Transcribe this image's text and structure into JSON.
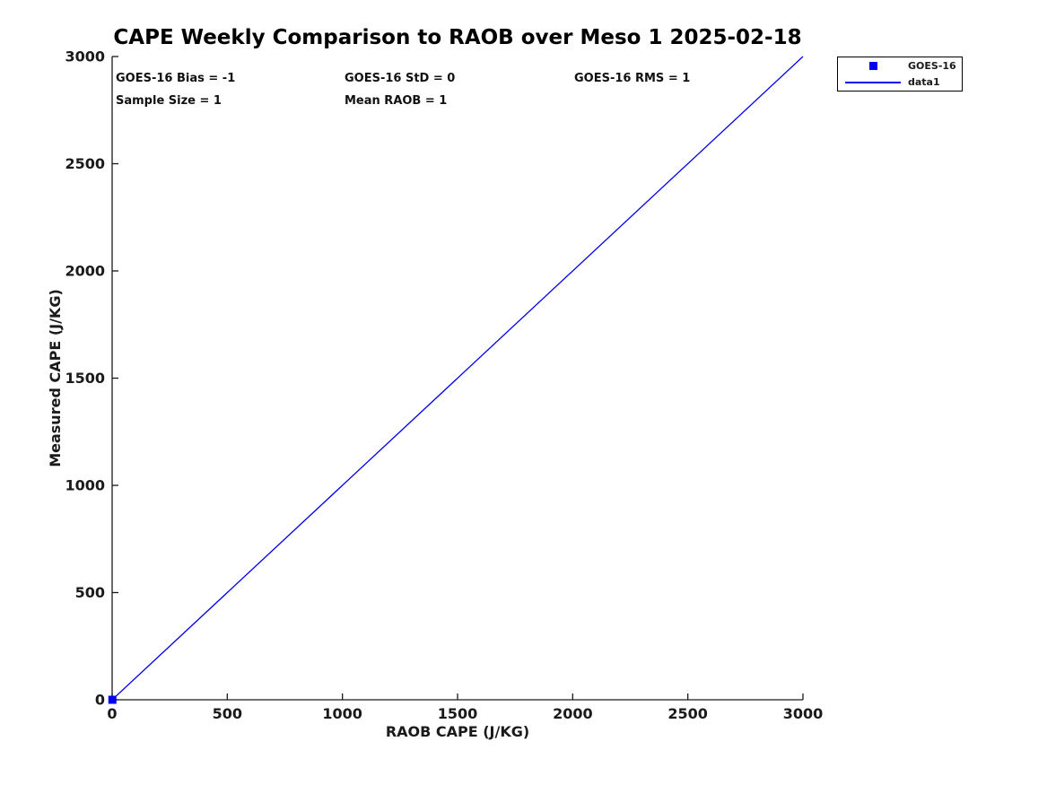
{
  "chart_data": {
    "type": "scatter",
    "title": "CAPE Weekly Comparison to RAOB over Meso 1 2025-02-18",
    "xlabel": "RAOB CAPE (J/KG)",
    "ylabel": "Measured CAPE (J/KG)",
    "xlim": [
      0,
      3000
    ],
    "ylim": [
      0,
      3000
    ],
    "xticks": [
      0,
      500,
      1000,
      1500,
      2000,
      2500,
      3000
    ],
    "yticks": [
      0,
      500,
      1000,
      1500,
      2000,
      2500,
      3000
    ],
    "grid": false,
    "tick_direction": "in",
    "box": false,
    "series": [
      {
        "name": "GOES-16",
        "type": "scatter",
        "marker": "square",
        "color": "#0000EE",
        "points": [
          [
            1,
            0
          ]
        ]
      },
      {
        "name": "data1",
        "type": "line",
        "color": "#0000EE",
        "points": [
          [
            0,
            0
          ],
          [
            3000,
            3000
          ]
        ]
      }
    ],
    "stats": {
      "bias": "GOES-16 Bias = -1",
      "std": "GOES-16 StD = 0",
      "rms": "GOES-16 RMS = 1",
      "sample_size": "Sample Size = 1",
      "mean_raob": "Mean RAOB = 1"
    },
    "legend": {
      "position": "outside-top-right",
      "entries": [
        {
          "label": "GOES-16",
          "icon": "square",
          "color": "#0000EE"
        },
        {
          "label": "data1",
          "icon": "line",
          "color": "#0000EE"
        }
      ]
    }
  },
  "colors": {
    "series_blue": "#0000EE",
    "axis": "#1a1a1a",
    "text": "#111111",
    "background": "#ffffff"
  }
}
